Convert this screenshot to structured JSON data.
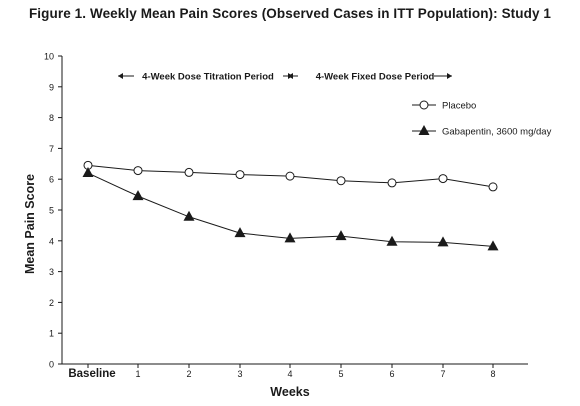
{
  "figure": {
    "title": "Figure 1. Weekly Mean Pain Scores (Observed Cases in ITT Population): Study 1"
  },
  "chart_data": {
    "type": "line",
    "title": "Figure 1. Weekly Mean Pain Scores (Observed Cases in ITT Population): Study 1",
    "xlabel": "Weeks",
    "ylabel": "Mean Pain Score",
    "categories": [
      "Baseline",
      "1",
      "2",
      "3",
      "4",
      "5",
      "6",
      "7",
      "8"
    ],
    "ylim": [
      0,
      10
    ],
    "yticks": [
      "0",
      "1",
      "2",
      "3",
      "4",
      "5",
      "6",
      "7",
      "8",
      "9",
      "10"
    ],
    "grid": false,
    "legend_position": "top-right",
    "series": [
      {
        "name": "Placebo",
        "marker": "open-circle",
        "values": [
          6.45,
          6.28,
          6.22,
          6.15,
          6.1,
          5.95,
          5.88,
          6.02,
          5.75
        ]
      },
      {
        "name": "Gabapentin, 3600 mg/day",
        "marker": "filled-triangle",
        "values": [
          6.2,
          5.45,
          4.78,
          4.25,
          4.08,
          4.15,
          3.97,
          3.95,
          3.82
        ]
      }
    ],
    "annotations": [
      {
        "text": "4-Week Dose Titration Period",
        "x_from": "Baseline",
        "x_to": "4"
      },
      {
        "text": "4-Week Fixed Dose Period",
        "x_from": "4",
        "x_to": "8"
      }
    ]
  }
}
